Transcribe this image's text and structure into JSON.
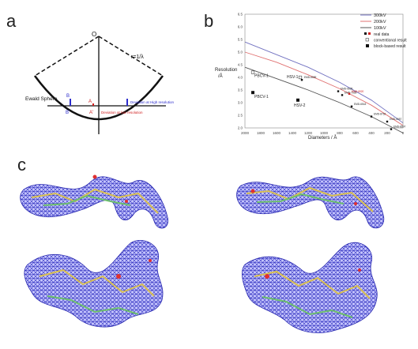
{
  "panels": {
    "a": {
      "letter": "a",
      "labels": {
        "origin": "O",
        "radius": "r=1/λ",
        "sphere": "Ewald Sphere",
        "B": "B",
        "B_prime": "B'",
        "A": "A",
        "A_prime": "A'",
        "high": "Deviation at High resolution",
        "low": "Deviation at low resolution"
      },
      "colors": {
        "high": "#2b2bcc",
        "low": "#d02020"
      }
    },
    "b": {
      "letter": "b",
      "ylabel_line1": "Resolution",
      "ylabel_line2": "/Å",
      "xlabel": "Diameters / Å",
      "legend": [
        "300kV",
        "200kV",
        "100kV",
        "real data",
        "conventional result",
        "block-based result"
      ]
    },
    "c": {
      "letter": "c"
    }
  },
  "chart_data": {
    "type": "line",
    "xlim": [
      2000,
      0
    ],
    "ylim": [
      2.0,
      6.5
    ],
    "x_ticks": [
      2000,
      1800,
      1600,
      1400,
      1200,
      1000,
      800,
      600,
      400,
      200,
      0
    ],
    "y_ticks": [
      2.0,
      2.5,
      3.0,
      3.5,
      4.0,
      4.5,
      5.0,
      5.5,
      6.0,
      6.5
    ],
    "series": [
      {
        "name": "300kV",
        "color": "#7070c0",
        "x": [
          2000,
          1600,
          1200,
          800,
          400,
          0
        ],
        "y": [
          5.4,
          4.9,
          4.4,
          3.8,
          3.1,
          2.2
        ]
      },
      {
        "name": "200kV",
        "color": "#e07070",
        "x": [
          2000,
          1600,
          1200,
          800,
          400,
          0
        ],
        "y": [
          5.0,
          4.6,
          4.1,
          3.55,
          2.9,
          2.1
        ]
      },
      {
        "name": "100kV",
        "color": "#555555",
        "x": [
          2000,
          1600,
          1200,
          800,
          400,
          0
        ],
        "y": [
          4.4,
          3.95,
          3.5,
          3.0,
          2.45,
          1.8
        ]
      }
    ],
    "points": [
      {
        "label": "PBCV-1",
        "x": 1900,
        "y": 4.2,
        "kind": "conventional"
      },
      {
        "label": "PBCV-1",
        "x": 1900,
        "y": 3.4,
        "kind": "block"
      },
      {
        "label": "HSV-1",
        "x": 1300,
        "y": 4.0,
        "kind": "conventional"
      },
      {
        "label": "HSV-2",
        "x": 1330,
        "y": 3.1,
        "kind": "block"
      },
      {
        "label": "EMD-6559",
        "x": 1280,
        "y": 3.9,
        "kind": "real"
      },
      {
        "label": "EMD-9635",
        "x": 820,
        "y": 3.45,
        "kind": "real"
      },
      {
        "label": "EMD-7555",
        "x": 770,
        "y": 3.3,
        "kind": "real"
      },
      {
        "label": "EMD-6920",
        "x": 680,
        "y": 3.35,
        "kind": "real"
      },
      {
        "label": "EMD-6518",
        "x": 650,
        "y": 2.85,
        "kind": "real"
      },
      {
        "label": "EMD-8762",
        "x": 400,
        "y": 2.45,
        "kind": "real"
      },
      {
        "label": "EMD-5957",
        "x": 200,
        "y": 2.25,
        "kind": "real"
      },
      {
        "label": "EMD-8597",
        "x": 150,
        "y": 1.95,
        "kind": "real"
      }
    ]
  }
}
